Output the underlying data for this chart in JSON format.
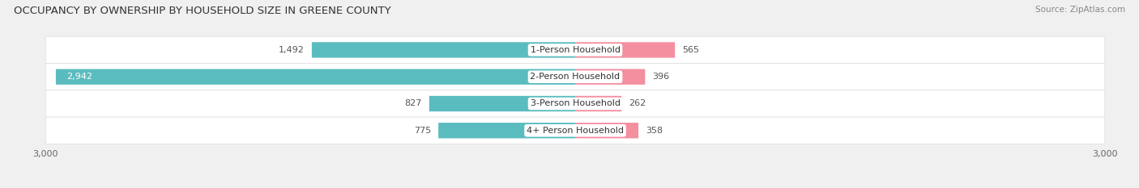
{
  "title": "OCCUPANCY BY OWNERSHIP BY HOUSEHOLD SIZE IN GREENE COUNTY",
  "source": "Source: ZipAtlas.com",
  "categories": [
    "1-Person Household",
    "2-Person Household",
    "3-Person Household",
    "4+ Person Household"
  ],
  "owner_values": [
    1492,
    2942,
    827,
    775
  ],
  "renter_values": [
    565,
    396,
    262,
    358
  ],
  "max_scale": 3000,
  "owner_color": "#5bbcbf",
  "renter_color": "#f48fa0",
  "bg_color": "#f0f0f0",
  "row_bg_color": "#e8e8e8",
  "title_fontsize": 9.5,
  "source_fontsize": 7.5,
  "bar_label_fontsize": 8,
  "cat_label_fontsize": 8,
  "axis_label_fontsize": 8,
  "legend_fontsize": 8
}
